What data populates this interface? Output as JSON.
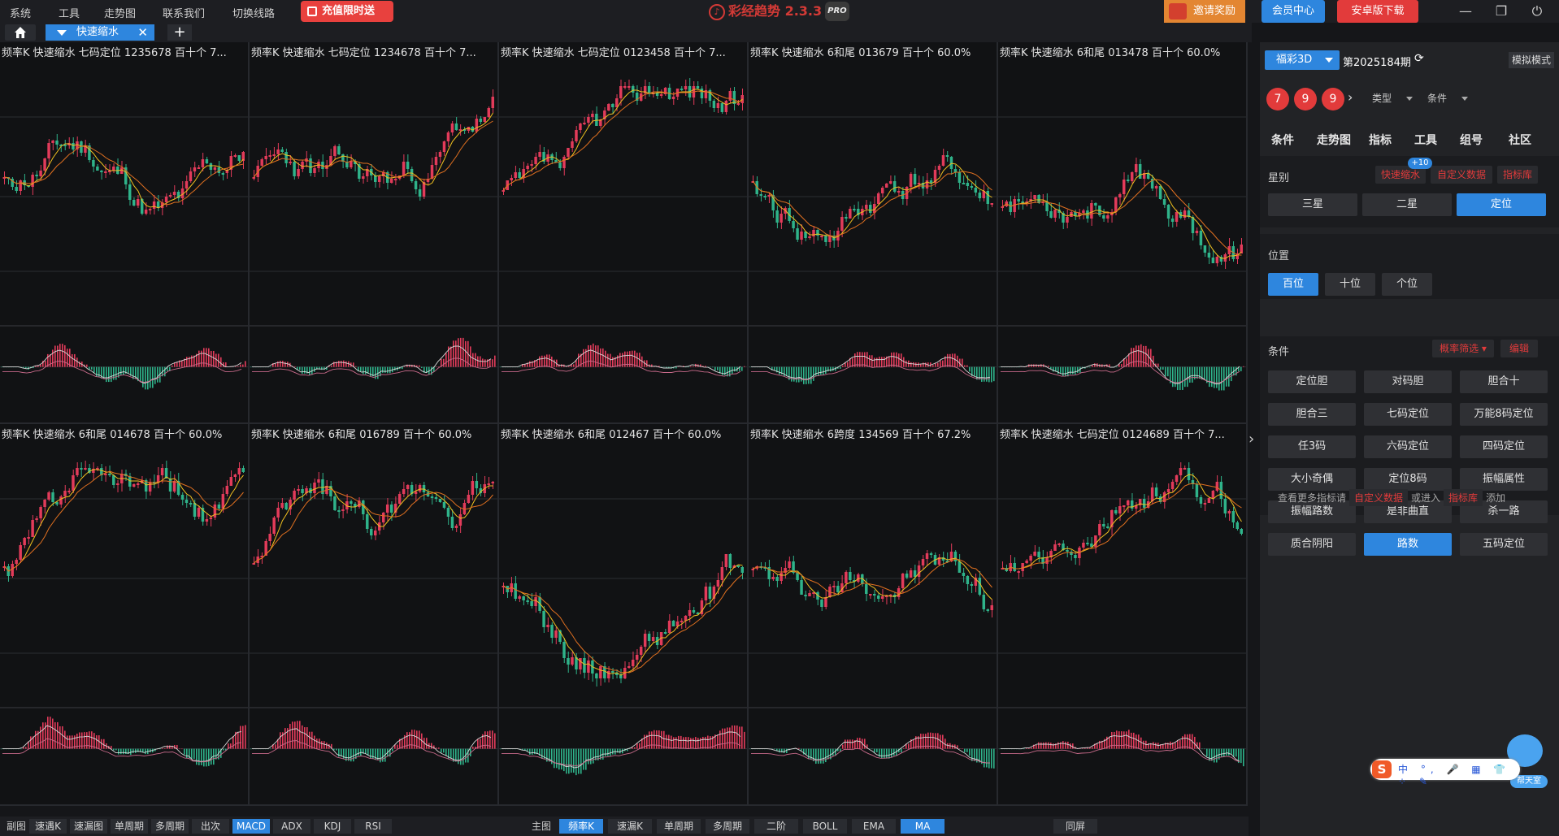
{
  "menu": [
    "系统",
    "工具",
    "走势图",
    "联系我们",
    "切换线路"
  ],
  "promo": {
    "label": "充值限时送"
  },
  "app": {
    "name": "彩经趋势 2.3.3",
    "badge": "PRO"
  },
  "top_right": {
    "invite": "邀请奖励",
    "member": "会员中心",
    "android": "安卓版下载"
  },
  "tabs": {
    "active": "快速缩水"
  },
  "panels": [
    {
      "title": "频率K  快速缩水  七码定位 1235678  百十个  7...",
      "seed": 11
    },
    {
      "title": "频率K  快速缩水  七码定位 1234678  百十个  7...",
      "seed": 23
    },
    {
      "title": "频率K  快速缩水  七码定位 0123458  百十个  7...",
      "seed": 37
    },
    {
      "title": "频率K  快速缩水  6和尾 013679  百十个  60.0%",
      "seed": 41
    },
    {
      "title": "频率K  快速缩水  6和尾 013478  百十个  60.0%",
      "seed": 53
    },
    {
      "title": "频率K  快速缩水  6和尾 014678  百十个  60.0%",
      "seed": 61
    },
    {
      "title": "频率K  快速缩水  6和尾 016789  百十个  60.0%",
      "seed": 73
    },
    {
      "title": "频率K  快速缩水  6和尾 012467  百十个  60.0%",
      "seed": 89
    },
    {
      "title": "频率K  快速缩水  6跨度 134569  百十个  67.2%",
      "seed": 97
    },
    {
      "title": "频率K  快速缩水  七码定位 0124689  百十个  7...",
      "seed": 103
    }
  ],
  "bottom": {
    "sub_label": "副图",
    "sub_buttons": [
      "速遇K",
      "速漏图",
      "单周期",
      "多周期",
      "出次",
      "MACD",
      "ADX",
      "KDJ",
      "RSI"
    ],
    "sub_active": "MACD",
    "main_label": "主图",
    "main_buttons": [
      "频率K",
      "速漏K",
      "单周期",
      "多周期",
      "二阶",
      "BOLL",
      "EMA",
      "MA"
    ],
    "main_active": [
      "频率K",
      "MA"
    ],
    "same_screen": "同屏"
  },
  "sidebar": {
    "lottery": "福彩3D",
    "period": "第2025184期",
    "simulate": "模拟模式",
    "balls": [
      "7",
      "9",
      "9"
    ],
    "type_select": "类型",
    "cond_select": "条件",
    "nav_tabs": [
      "条件",
      "走势图",
      "指标",
      "工具",
      "组号",
      "社区"
    ],
    "star": {
      "title": "星别",
      "badge": "+10",
      "links": [
        "快速缩水",
        "自定义数据",
        "指标库"
      ],
      "options": [
        "三星",
        "二星",
        "定位"
      ],
      "active": "定位"
    },
    "position": {
      "title": "位置",
      "options": [
        "百位",
        "十位",
        "个位"
      ],
      "active": "百位"
    },
    "conditions": {
      "title": "条件",
      "filter": "概率筛选",
      "edit": "编辑",
      "buttons": [
        "定位胆",
        "对码胆",
        "胆合十",
        "胆合三",
        "七码定位",
        "万能8码定位",
        "任3码",
        "六码定位",
        "四码定位",
        "大小奇偶",
        "定位8码",
        "振幅属性",
        "振幅路数",
        "是非曲直",
        "杀一路",
        "质合阴阳",
        "路数",
        "五码定位"
      ],
      "active": "路数"
    },
    "more": {
      "prefix": "查看更多指标请",
      "link1": "自定义数据",
      "mid": "或进入",
      "link2": "指标库",
      "suffix": "添加"
    }
  },
  "ime": {
    "label": "中 °, 🎤 ▦ 👕 ⁘ ✎",
    "robot": "帮天室"
  },
  "colors": {
    "up": "#e23b5a",
    "down": "#2fb38a",
    "ma_fast": "#f0c020",
    "ma_slow": "#e07020",
    "accent": "#2e86de"
  }
}
